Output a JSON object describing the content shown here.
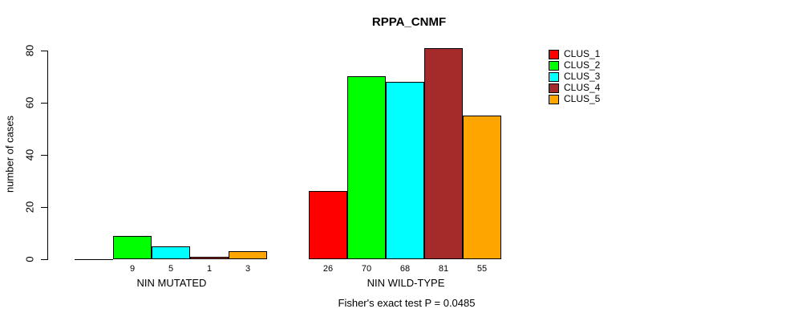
{
  "chart_data": {
    "type": "bar",
    "title": "RPPA_CNMF",
    "ylabel": "number of cases",
    "xlabel": "",
    "ylim": [
      0,
      80
    ],
    "yticks": [
      0,
      20,
      40,
      60,
      80
    ],
    "categories": [
      "NIN MUTATED",
      "NIN WILD-TYPE"
    ],
    "series": [
      {
        "name": "CLUS_1",
        "color": "#FF0000",
        "values": [
          0,
          26
        ]
      },
      {
        "name": "CLUS_2",
        "color": "#00FF00",
        "values": [
          9,
          70
        ]
      },
      {
        "name": "CLUS_3",
        "color": "#00FFFF",
        "values": [
          5,
          68
        ]
      },
      {
        "name": "CLUS_4",
        "color": "#A52A2A",
        "values": [
          1,
          81
        ]
      },
      {
        "name": "CLUS_5",
        "color": "#FFA500",
        "values": [
          3,
          55
        ]
      }
    ],
    "groups": [
      {
        "label": "NIN MUTATED",
        "values": [
          0,
          9,
          5,
          1,
          3
        ],
        "visible_value_labels": [
          "9",
          "5",
          "1",
          "3"
        ]
      },
      {
        "label": "NIN WILD-TYPE",
        "values": [
          26,
          70,
          68,
          81,
          55
        ],
        "visible_value_labels": [
          "26",
          "70",
          "68",
          "81",
          "55"
        ]
      }
    ],
    "legend_position": "right",
    "grid": false,
    "annotation": "Fisher's exact test P = 0.0485",
    "background_color": "#FFFFFF",
    "text_color": "#000000"
  }
}
